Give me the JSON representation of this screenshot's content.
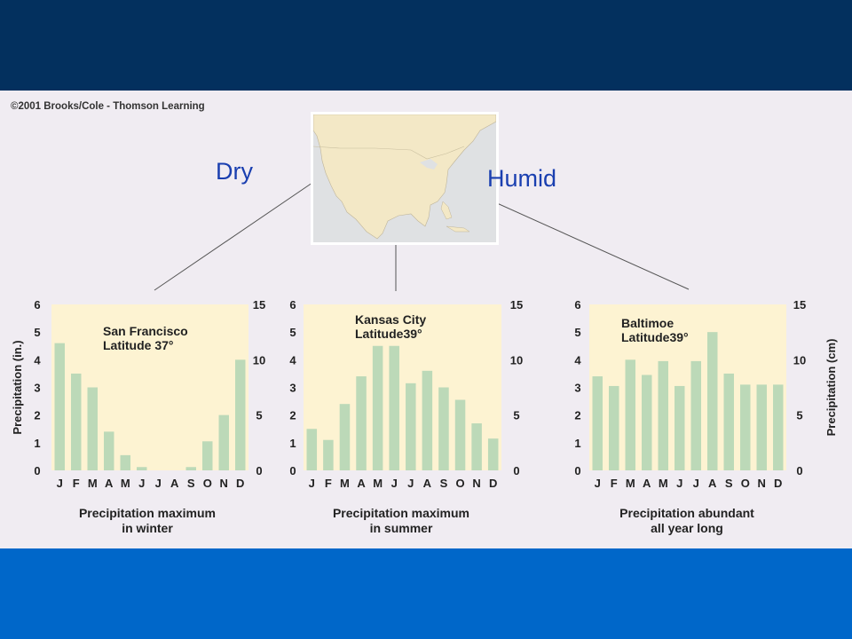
{
  "copyright": "©2001 Brooks/Cole - Thomson Learning",
  "labels": {
    "dry": "Dry",
    "humid": "Humid"
  },
  "colors": {
    "top_band": "#03305e",
    "bottom_band": "#0067c9",
    "plot_bg": "#fdf3d2",
    "bar": "#bcd9b8",
    "land": "#f3e8c6",
    "water": "#dfe1e3",
    "dot": "#f4a86a",
    "label_blue": "#1a3fb0"
  },
  "chart_data": [
    {
      "type": "bar",
      "title_line1": "San Francisco",
      "title_line2": "Latitude 37°",
      "caption_line1": "Precipitation maximum",
      "caption_line2": "in winter",
      "ylabel_left": "Precipitation (in.)",
      "ylabel_right": "",
      "categories": [
        "J",
        "F",
        "M",
        "A",
        "M",
        "J",
        "J",
        "A",
        "S",
        "O",
        "N",
        "D"
      ],
      "values": [
        4.6,
        3.5,
        3.0,
        1.4,
        0.55,
        0.12,
        0.0,
        0.0,
        0.12,
        1.05,
        2.0,
        4.0
      ],
      "yticks_left": [
        "0",
        "1",
        "2",
        "3",
        "4",
        "5",
        "6"
      ],
      "yticks_right": [
        "0",
        "5",
        "10",
        "15"
      ],
      "ylim": [
        0,
        6
      ]
    },
    {
      "type": "bar",
      "title_line1": "Kansas City",
      "title_line2": "Latitude39°",
      "caption_line1": "Precipitation maximum",
      "caption_line2": "in summer",
      "ylabel_left": "",
      "ylabel_right": "",
      "categories": [
        "J",
        "F",
        "M",
        "A",
        "M",
        "J",
        "J",
        "A",
        "S",
        "O",
        "N",
        "D"
      ],
      "values": [
        1.5,
        1.1,
        2.4,
        3.4,
        4.5,
        4.5,
        3.15,
        3.6,
        3.0,
        2.55,
        1.7,
        1.15
      ],
      "yticks_left": [
        "0",
        "1",
        "2",
        "3",
        "4",
        "5",
        "6"
      ],
      "yticks_right": [
        "0",
        "5",
        "10",
        "15"
      ],
      "ylim": [
        0,
        6
      ]
    },
    {
      "type": "bar",
      "title_line1": "Baltimoe",
      "title_line2": "Latitude39°",
      "caption_line1": "Precipitation abundant",
      "caption_line2": "all year long",
      "ylabel_left": "",
      "ylabel_right": "Precipitation (cm)",
      "categories": [
        "J",
        "F",
        "M",
        "A",
        "M",
        "J",
        "J",
        "A",
        "S",
        "O",
        "N",
        "D"
      ],
      "values": [
        3.4,
        3.05,
        4.0,
        3.45,
        3.95,
        3.05,
        3.95,
        5.0,
        3.5,
        3.1,
        3.1,
        3.1
      ],
      "yticks_left": [
        "0",
        "1",
        "2",
        "3",
        "4",
        "5",
        "6"
      ],
      "yticks_right": [
        "0",
        "5",
        "10",
        "15"
      ],
      "ylim": [
        0,
        6
      ]
    }
  ]
}
